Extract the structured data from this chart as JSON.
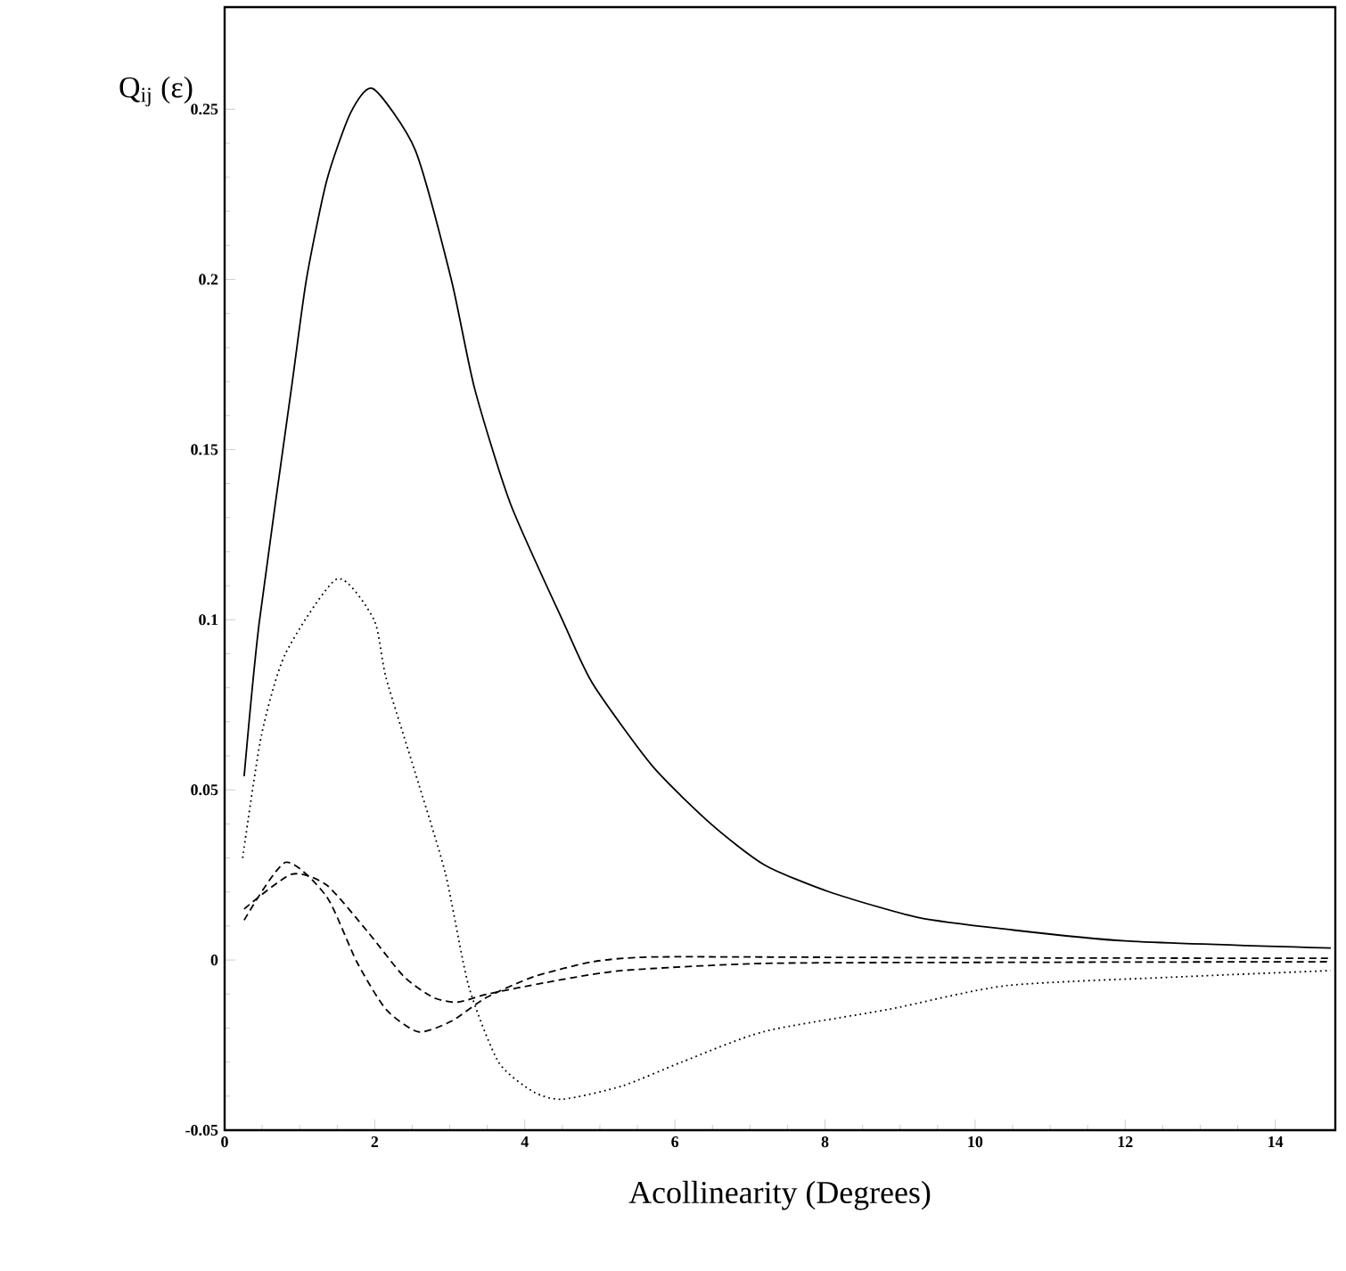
{
  "chart_data": {
    "type": "line",
    "xlabel": "Acollinearity (Degrees)",
    "ylabel": "Q$_{ij}$ (ε)",
    "xlim": [
      0,
      14.8
    ],
    "ylim": [
      -0.05,
      0.28
    ],
    "xticks": [
      0,
      2,
      4,
      6,
      8,
      10,
      12,
      14
    ],
    "yticks": [
      {
        "value": -0.05,
        "label": "-0.05"
      },
      0,
      0.05,
      {
        "value": 0.1,
        "label": "0.1"
      },
      0.15,
      {
        "value": 0.2,
        "label": "0.2"
      },
      0.25
    ],
    "grid": false,
    "marker": "none",
    "series": [
      {
        "color": "#000000",
        "line_style": "solid",
        "x": [
          0.26,
          0.46,
          0.89,
          1.09,
          1.36,
          1.68,
          1.98,
          2.54,
          3.02,
          3.33,
          3.81,
          4.52,
          4.91,
          5.7,
          6.48,
          7.19,
          8.06,
          9.24,
          10.43,
          12.0,
          14.74
        ],
        "values": [
          0.054,
          0.099,
          0.168,
          0.2,
          0.229,
          0.249,
          0.256,
          0.238,
          0.2,
          0.168,
          0.134,
          0.099,
          0.081,
          0.057,
          0.04,
          0.028,
          0.02,
          0.0125,
          0.009,
          0.0056,
          0.0035
        ]
      },
      {
        "color": "#000000",
        "line_style": "dotted",
        "x": [
          0.24,
          0.49,
          0.81,
          1.5,
          1.99,
          2.15,
          2.54,
          2.94,
          3.25,
          3.65,
          4.12,
          4.51,
          5.3,
          6.09,
          7.19,
          8.85,
          10.43,
          12.79,
          14.74
        ],
        "values": [
          0.03,
          0.066,
          0.09,
          0.112,
          0.1,
          0.083,
          0.055,
          0.0256,
          -0.0075,
          -0.03,
          -0.0388,
          -0.0409,
          -0.037,
          -0.03,
          -0.021,
          -0.0145,
          -0.0075,
          -0.0049,
          -0.0031
        ]
      },
      {
        "color": "#000000",
        "line_style": "dashed",
        "x": [
          0.26,
          0.81,
          1.36,
          1.76,
          2.15,
          2.58,
          3.02,
          3.49,
          4.12,
          4.91,
          5.7,
          8.0,
          11.0,
          14.74
        ],
        "values": [
          0.0117,
          0.0287,
          0.0186,
          -0.0005,
          -0.0145,
          -0.0211,
          -0.018,
          -0.011,
          -0.0049,
          -0.0005,
          0.0009,
          0.0008,
          0.0006,
          0.0005
        ]
      },
      {
        "color": "#000000",
        "line_style": "dashed",
        "x": [
          0.26,
          0.89,
          1.36,
          1.91,
          2.39,
          2.78,
          3.1,
          3.49,
          4.28,
          5.3,
          7.19,
          10.0,
          14.74
        ],
        "values": [
          0.015,
          0.0252,
          0.022,
          0.0082,
          -0.0049,
          -0.011,
          -0.0124,
          -0.0101,
          -0.0066,
          -0.0031,
          -0.001,
          -0.0007,
          -0.0005
        ]
      }
    ]
  }
}
